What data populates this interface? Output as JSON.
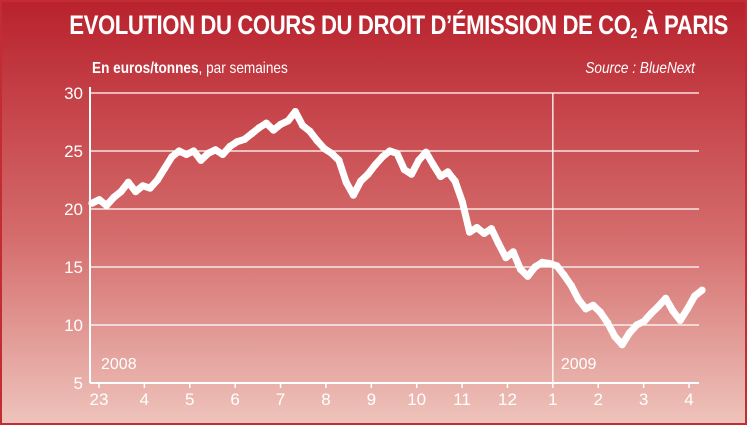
{
  "chart_data": {
    "type": "line",
    "title_main": "EVOLUTION DU COURS DU DROIT D’ÉMISSION DE CO",
    "title_sub": "2",
    "title_tail": " À PARIS",
    "subtitle_bold": "En euros/tonnes",
    "subtitle_rest": ", par semaines",
    "source": "Source : BlueNext",
    "ylim": [
      5,
      30
    ],
    "yticks": [
      "30",
      "25",
      "20",
      "15",
      "10",
      "5"
    ],
    "xticks": [
      "23",
      "4",
      "5",
      "6",
      "7",
      "8",
      "9",
      "10",
      "11",
      "12",
      "1",
      "2",
      "3",
      "4"
    ],
    "year_labels": [
      "2008",
      "2009"
    ],
    "grid": true,
    "colors": {
      "line": "#ffffff",
      "grid": "#ffffff",
      "background_top": "#b9222d",
      "background_bottom": "#eec3bb"
    },
    "series": [
      {
        "values": [
          20.5,
          20.8,
          20.3,
          21.0,
          21.5,
          22.3,
          21.5,
          22.0,
          21.8,
          22.5,
          23.5,
          24.5,
          25.0,
          24.7,
          25.0,
          24.2,
          24.8,
          25.1,
          24.7,
          25.4,
          25.8,
          26.0,
          26.5,
          27.0,
          27.4,
          26.8,
          27.3,
          27.6,
          28.4,
          27.2,
          26.7,
          25.9,
          25.2,
          24.8,
          24.2,
          22.3,
          21.2,
          22.4,
          23.0,
          23.8,
          24.5,
          25.0,
          24.8,
          23.4,
          23.0,
          24.2,
          24.9,
          23.8,
          22.8,
          23.2,
          22.4,
          20.6,
          18.0,
          18.4,
          17.9,
          18.3,
          17.0,
          15.8,
          16.3,
          14.8,
          14.2,
          15.0,
          15.4,
          15.3,
          15.1,
          14.3,
          13.4,
          12.2,
          11.4,
          11.7,
          11.1,
          10.2,
          9.0,
          8.3,
          9.3,
          10.0,
          10.3,
          11.0,
          11.6,
          12.3,
          11.2,
          10.4,
          11.4,
          12.5,
          13.0
        ]
      }
    ]
  }
}
